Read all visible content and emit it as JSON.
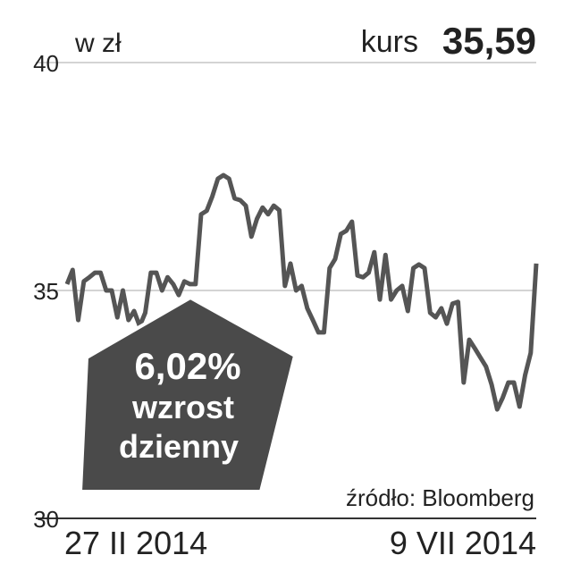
{
  "chart_data": {
    "type": "line",
    "unit": "w zł",
    "title": "kurs",
    "current": "35,59",
    "source": "źródło: Bloomberg",
    "badge": {
      "value": "6,02%",
      "lines": [
        "wzrost",
        "dzienny"
      ]
    },
    "categories": [
      "27 II 2014",
      null,
      null,
      null,
      null,
      null,
      null,
      null,
      null,
      null,
      null,
      null,
      null,
      null,
      null,
      null,
      null,
      null,
      null,
      null,
      null,
      null,
      null,
      null,
      null,
      null,
      null,
      null,
      null,
      null,
      null,
      null,
      null,
      null,
      null,
      null,
      null,
      null,
      null,
      null,
      null,
      null,
      null,
      null,
      null,
      null,
      null,
      null,
      null,
      null,
      null,
      null,
      null,
      null,
      null,
      null,
      null,
      null,
      null,
      null,
      null,
      null,
      null,
      null,
      null,
      null,
      null,
      null,
      null,
      null,
      null,
      null,
      null,
      null,
      null,
      null,
      null,
      null,
      null,
      null,
      null,
      null,
      null,
      null,
      "9 VII 2014"
    ],
    "values": [
      35.14,
      35.45,
      34.35,
      35.2,
      35.29,
      35.39,
      35.39,
      35.0,
      35.0,
      34.41,
      35.0,
      34.35,
      34.55,
      34.22,
      34.51,
      35.39,
      35.39,
      35.0,
      35.29,
      35.14,
      34.9,
      35.2,
      35.14,
      35.14,
      36.67,
      36.75,
      37.06,
      37.45,
      37.53,
      37.45,
      37.02,
      36.98,
      36.86,
      36.18,
      36.57,
      36.82,
      36.67,
      36.86,
      36.76,
      35.1,
      35.59,
      35.0,
      35.1,
      34.61,
      34.35,
      34.08,
      34.08,
      35.49,
      35.69,
      36.24,
      36.31,
      36.51,
      35.33,
      35.29,
      35.39,
      35.84,
      34.8,
      35.78,
      34.8,
      35.0,
      35.1,
      34.55,
      35.49,
      35.57,
      35.49,
      34.51,
      34.41,
      34.61,
      34.27,
      34.71,
      34.75,
      32.98,
      33.92,
      33.73,
      33.53,
      33.33,
      32.94,
      32.39,
      32.65,
      32.98,
      32.98,
      32.45,
      33.14,
      33.63,
      35.59
    ],
    "color": "#555555",
    "ylim": [
      30,
      40
    ],
    "yticks": [
      30,
      35,
      40
    ],
    "grid": true
  }
}
